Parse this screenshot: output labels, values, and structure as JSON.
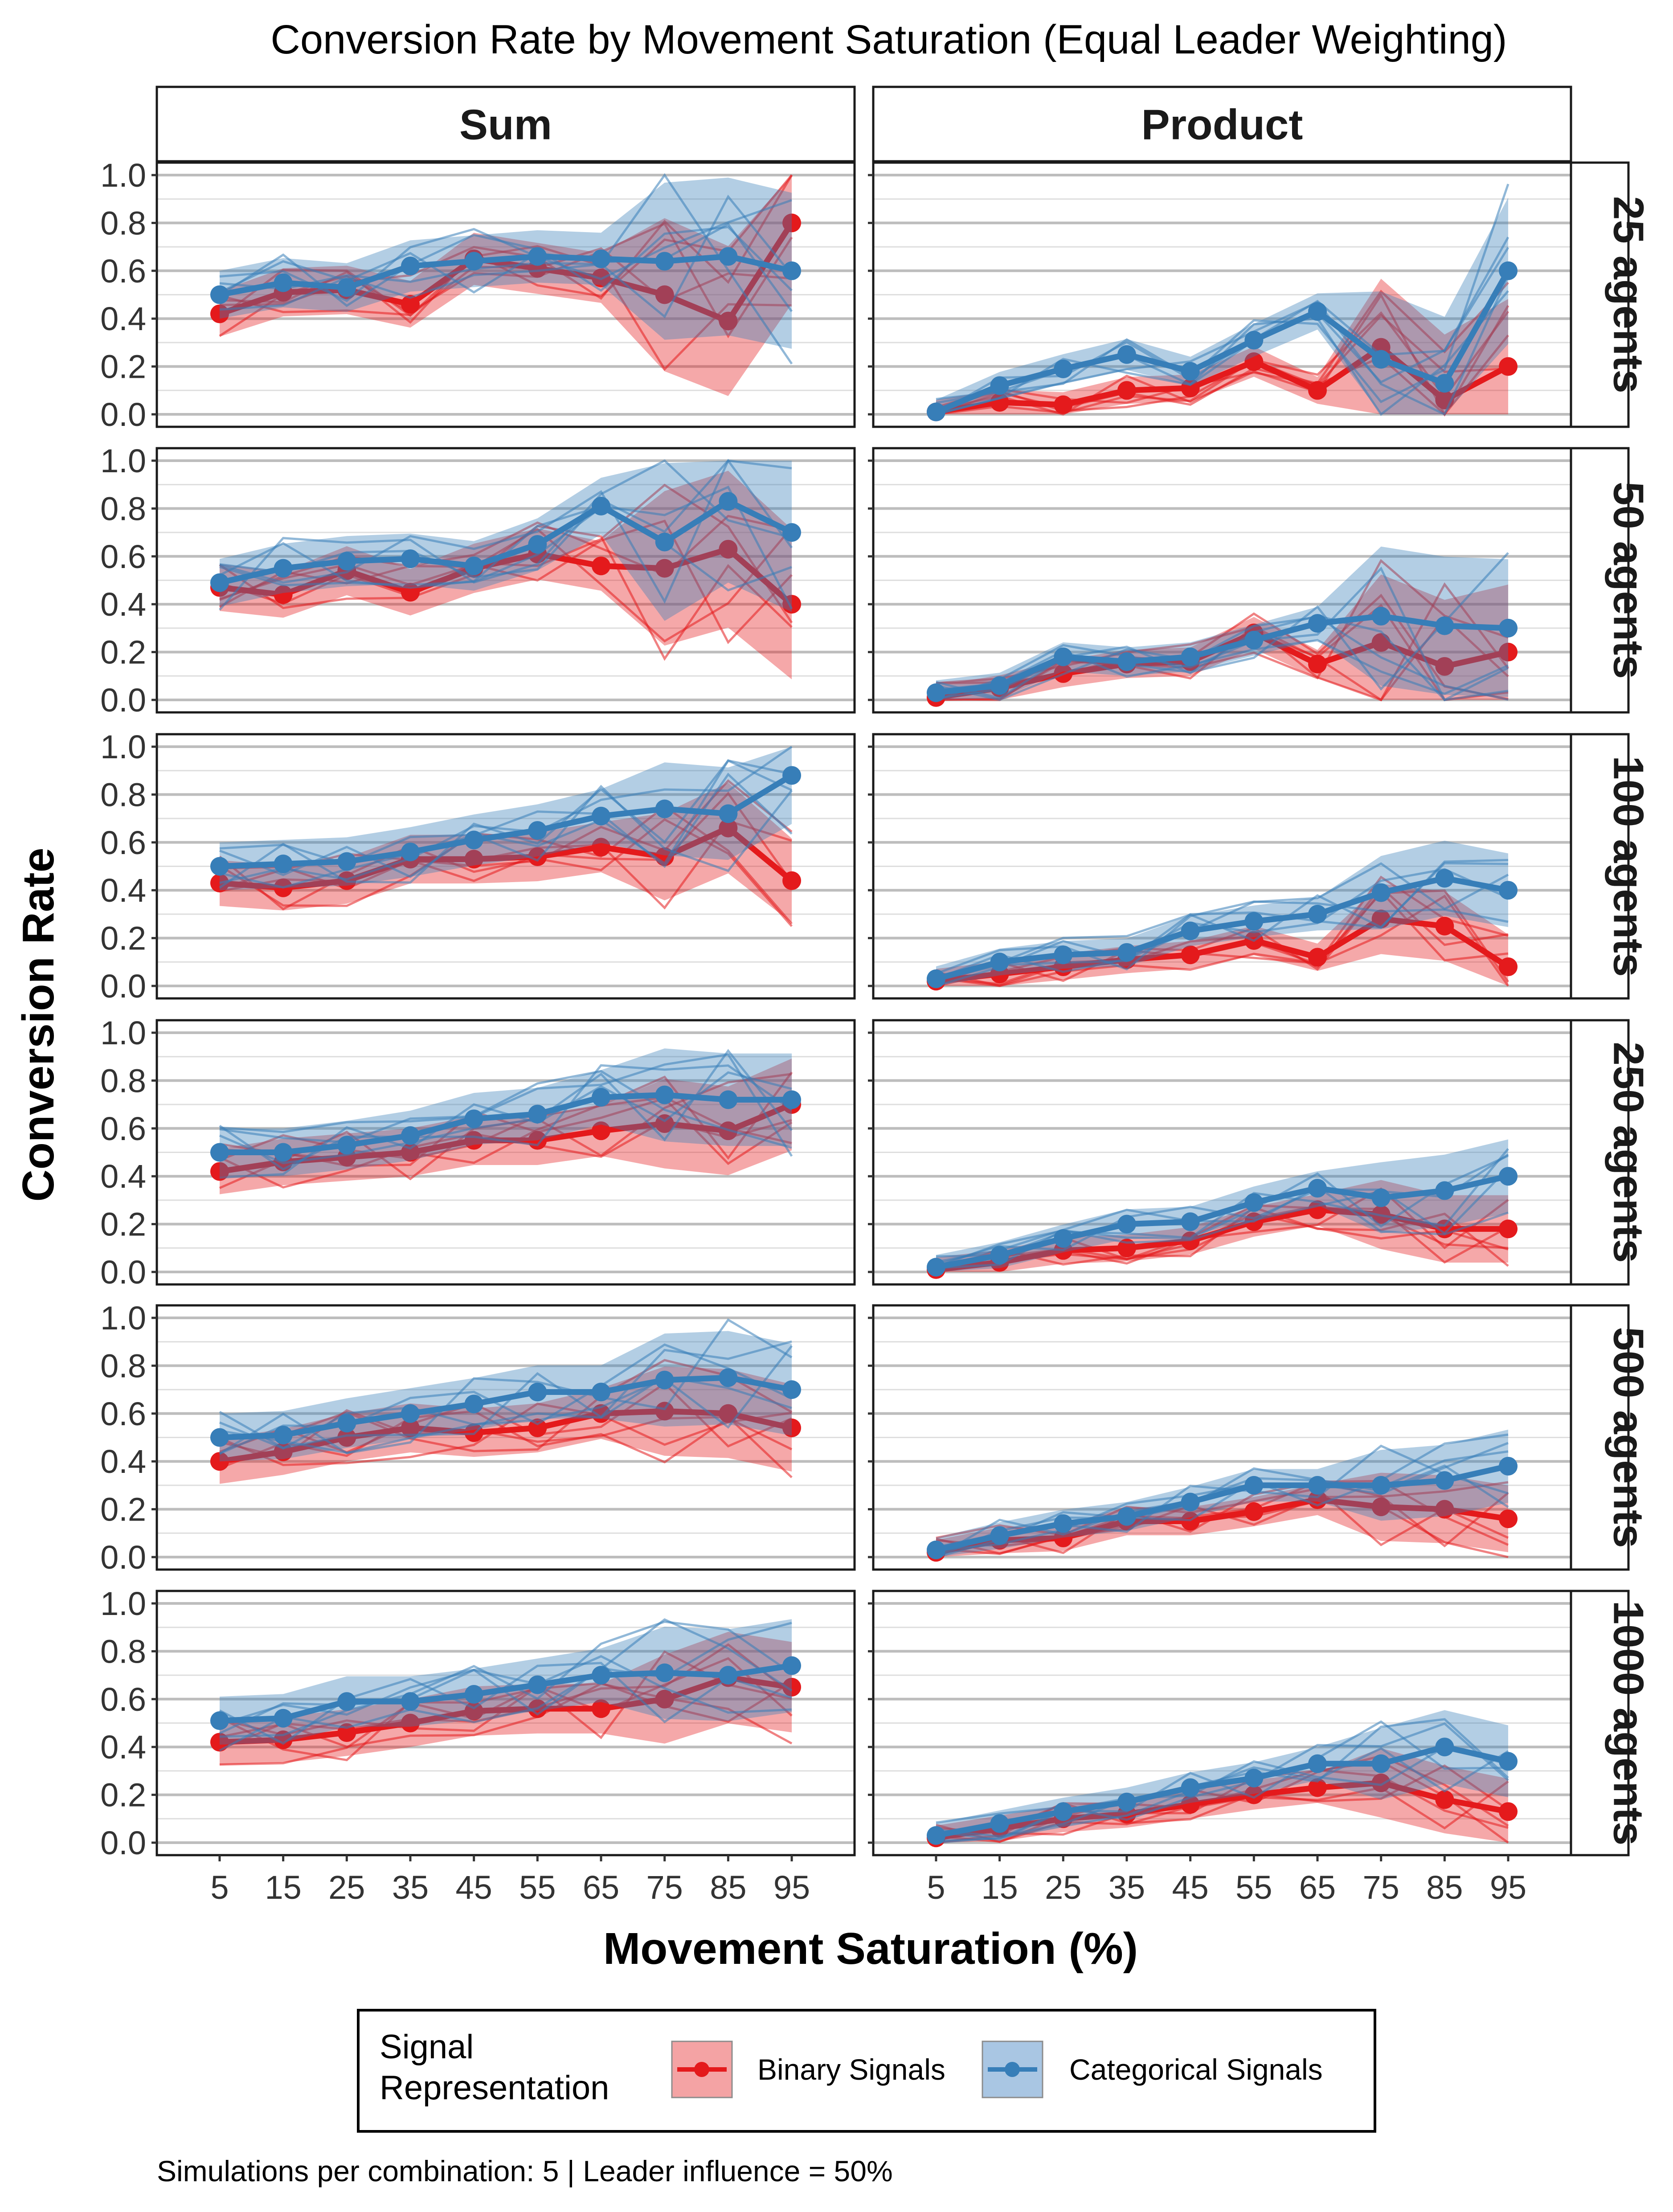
{
  "chart_data": {
    "type": "line",
    "title": "Conversion Rate by Movement Saturation (Equal Leader Weighting)",
    "xlabel": "Movement Saturation (%)",
    "ylabel": "Conversion Rate",
    "caption": "Simulations per combination: 5 | Leader influence = 50%",
    "x": [
      5,
      15,
      25,
      35,
      45,
      55,
      65,
      75,
      85,
      95
    ],
    "x_tick_labels": [
      "5",
      "15",
      "25",
      "35",
      "45",
      "55",
      "65",
      "75",
      "85",
      "95"
    ],
    "y_ticks": [
      "0.0",
      "0.2",
      "0.4",
      "0.6",
      "0.8",
      "1.0"
    ],
    "ylim": [
      0,
      1
    ],
    "columns": [
      "Sum",
      "Product"
    ],
    "rows": [
      "25 agents",
      "50 agents",
      "100 agents",
      "250 agents",
      "500 agents",
      "1000 agents"
    ],
    "legend": {
      "title": "Signal Representation",
      "title_lines": [
        "Signal",
        "Representation"
      ],
      "placement": "bottom",
      "entries": [
        {
          "label": "Binary Signals",
          "color": "#E41A1C",
          "fill": "#F4A3A4"
        },
        {
          "label": "Categorical Signals",
          "color": "#377EB8",
          "fill": "#A9C6E3"
        }
      ]
    },
    "grid": true,
    "panels": [
      {
        "row": "25 agents",
        "col": "Sum",
        "binary": [
          0.42,
          0.51,
          0.52,
          0.46,
          0.65,
          0.61,
          0.57,
          0.5,
          0.39,
          0.8
        ],
        "categorical": [
          0.5,
          0.55,
          0.53,
          0.62,
          0.64,
          0.66,
          0.65,
          0.64,
          0.66,
          0.6
        ]
      },
      {
        "row": "25 agents",
        "col": "Product",
        "binary": [
          0.01,
          0.05,
          0.04,
          0.1,
          0.11,
          0.22,
          0.1,
          0.28,
          0.06,
          0.2
        ],
        "categorical": [
          0.01,
          0.12,
          0.19,
          0.25,
          0.18,
          0.31,
          0.43,
          0.23,
          0.13,
          0.6
        ]
      },
      {
        "row": "50 agents",
        "col": "Sum",
        "binary": [
          0.47,
          0.44,
          0.54,
          0.45,
          0.55,
          0.61,
          0.56,
          0.55,
          0.63,
          0.4
        ],
        "categorical": [
          0.49,
          0.55,
          0.58,
          0.59,
          0.56,
          0.65,
          0.81,
          0.66,
          0.83,
          0.7
        ]
      },
      {
        "row": "50 agents",
        "col": "Product",
        "binary": [
          0.01,
          0.05,
          0.11,
          0.15,
          0.16,
          0.28,
          0.15,
          0.24,
          0.14,
          0.2
        ],
        "categorical": [
          0.03,
          0.06,
          0.18,
          0.16,
          0.18,
          0.25,
          0.32,
          0.35,
          0.31,
          0.3
        ]
      },
      {
        "row": "100 agents",
        "col": "Sum",
        "binary": [
          0.43,
          0.41,
          0.44,
          0.53,
          0.53,
          0.54,
          0.58,
          0.54,
          0.66,
          0.44
        ],
        "categorical": [
          0.5,
          0.51,
          0.52,
          0.56,
          0.61,
          0.65,
          0.71,
          0.74,
          0.72,
          0.88
        ]
      },
      {
        "row": "100 agents",
        "col": "Product",
        "binary": [
          0.02,
          0.05,
          0.08,
          0.11,
          0.13,
          0.19,
          0.12,
          0.28,
          0.25,
          0.08
        ],
        "categorical": [
          0.03,
          0.1,
          0.13,
          0.14,
          0.23,
          0.27,
          0.3,
          0.39,
          0.45,
          0.4
        ]
      },
      {
        "row": "250 agents",
        "col": "Sum",
        "binary": [
          0.42,
          0.46,
          0.48,
          0.5,
          0.55,
          0.55,
          0.59,
          0.62,
          0.59,
          0.7
        ],
        "categorical": [
          0.5,
          0.5,
          0.53,
          0.57,
          0.64,
          0.66,
          0.73,
          0.74,
          0.72,
          0.72
        ]
      },
      {
        "row": "250 agents",
        "col": "Product",
        "binary": [
          0.01,
          0.04,
          0.09,
          0.1,
          0.13,
          0.21,
          0.26,
          0.24,
          0.18,
          0.18
        ],
        "categorical": [
          0.02,
          0.07,
          0.14,
          0.2,
          0.21,
          0.29,
          0.35,
          0.31,
          0.34,
          0.4
        ]
      },
      {
        "row": "500 agents",
        "col": "Sum",
        "binary": [
          0.4,
          0.44,
          0.5,
          0.54,
          0.52,
          0.54,
          0.6,
          0.61,
          0.6,
          0.54
        ],
        "categorical": [
          0.5,
          0.51,
          0.56,
          0.6,
          0.64,
          0.69,
          0.69,
          0.74,
          0.75,
          0.7
        ]
      },
      {
        "row": "500 agents",
        "col": "Product",
        "binary": [
          0.02,
          0.07,
          0.08,
          0.15,
          0.15,
          0.19,
          0.24,
          0.21,
          0.2,
          0.16
        ],
        "categorical": [
          0.03,
          0.09,
          0.14,
          0.17,
          0.23,
          0.3,
          0.3,
          0.3,
          0.32,
          0.38
        ]
      },
      {
        "row": "1000 agents",
        "col": "Sum",
        "binary": [
          0.42,
          0.43,
          0.46,
          0.5,
          0.55,
          0.56,
          0.56,
          0.6,
          0.69,
          0.65
        ],
        "categorical": [
          0.51,
          0.52,
          0.59,
          0.59,
          0.62,
          0.66,
          0.7,
          0.71,
          0.7,
          0.74
        ]
      },
      {
        "row": "1000 agents",
        "col": "Product",
        "binary": [
          0.02,
          0.06,
          0.1,
          0.12,
          0.16,
          0.2,
          0.23,
          0.25,
          0.18,
          0.13
        ],
        "categorical": [
          0.03,
          0.08,
          0.13,
          0.17,
          0.23,
          0.27,
          0.33,
          0.33,
          0.4,
          0.34
        ]
      }
    ]
  }
}
